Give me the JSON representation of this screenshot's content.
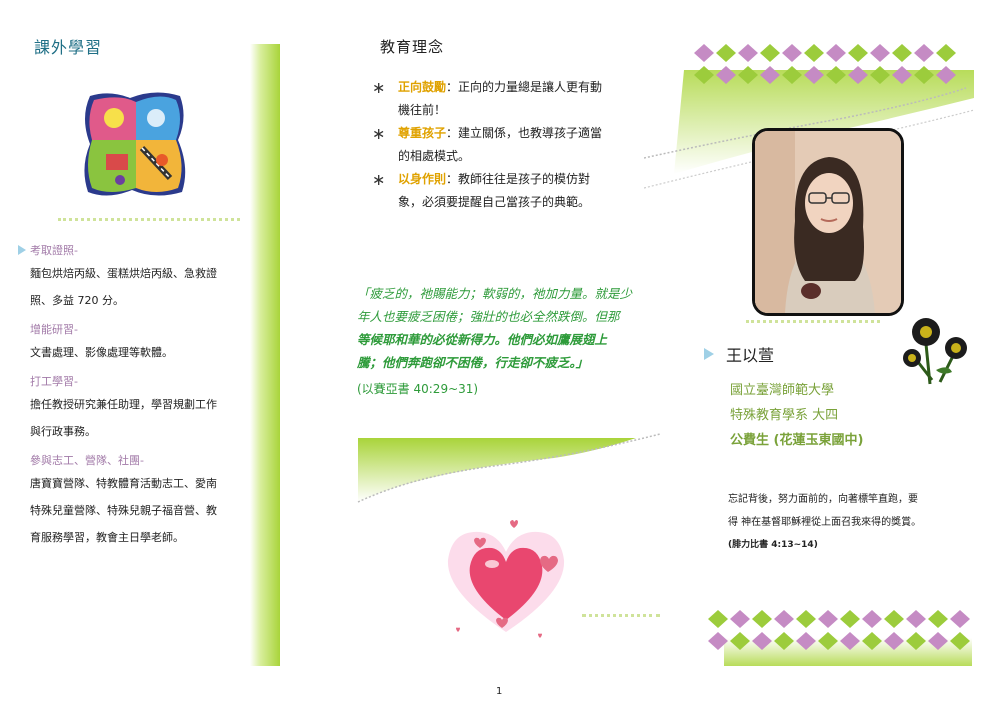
{
  "left": {
    "title": "課外學習",
    "sections": [
      {
        "head": "考取證照-",
        "body": [
          "麵包烘焙丙級、蛋糕烘焙丙級、急救證",
          "照、多益 720 分。"
        ]
      },
      {
        "head": "增能研習-",
        "body": [
          "文書處理、影像處理等軟體。"
        ]
      },
      {
        "head": "打工學習-",
        "body": [
          "擔任教授研究兼任助理，學習規劃工作",
          "與行政事務。"
        ]
      },
      {
        "head": "參與志工、營隊、社團-",
        "body": [
          "唐寶寶營隊、特教體育活動志工、愛南",
          "特殊兒童營隊、特殊兒親子福音營、教",
          "育服務學習，教會主日學老師。"
        ]
      }
    ]
  },
  "middle": {
    "title": "教育理念",
    "principles": [
      {
        "key": "正向鼓勵",
        "text": "：正向的力量總是讓人更有動",
        "text2": "機往前！"
      },
      {
        "key": "尊重孩子",
        "text": "：建立關係，也教導孩子適當",
        "text2": "的相處模式。"
      },
      {
        "key": "以身作則",
        "text": "：教師往往是孩子的模仿對",
        "text2": "象，必須要提醒自己當孩子的典範。"
      }
    ],
    "verse_lines": [
      "「疲乏的，祂賜能力；軟弱的，祂加力量。就是少",
      "年人也要疲乏困倦；強壯的也必全然跌倒。但那",
      "等候耶和華的必從新得力。他們必如鷹展翅上",
      "騰；他們奔跑卻不困倦，行走卻不疲乏。」"
    ],
    "verse_ref": "(以賽亞書 40:29~31)"
  },
  "right": {
    "name": "王以萱",
    "info": [
      "國立臺灣師範大學",
      "特殊教育學系 大四",
      "公費生 (花蓮玉東國中)"
    ],
    "motto": [
      "忘記背後，努力面前的，向著標竿直跑，要",
      "得 神在基督耶穌裡從上面召我來得的獎賞。"
    ],
    "motto_ref": "(腓力比書 4:13~14)"
  },
  "page_number": "1",
  "colors": {
    "title": "#1f6f86",
    "accent_gold": "#e0a200",
    "verse_green": "#2e9b3a",
    "section_purple": "#a27aa8",
    "bar_green": "#b8dc5a",
    "diamond_purple": "#c58bc4",
    "diamond_green": "#9ccc3c"
  }
}
